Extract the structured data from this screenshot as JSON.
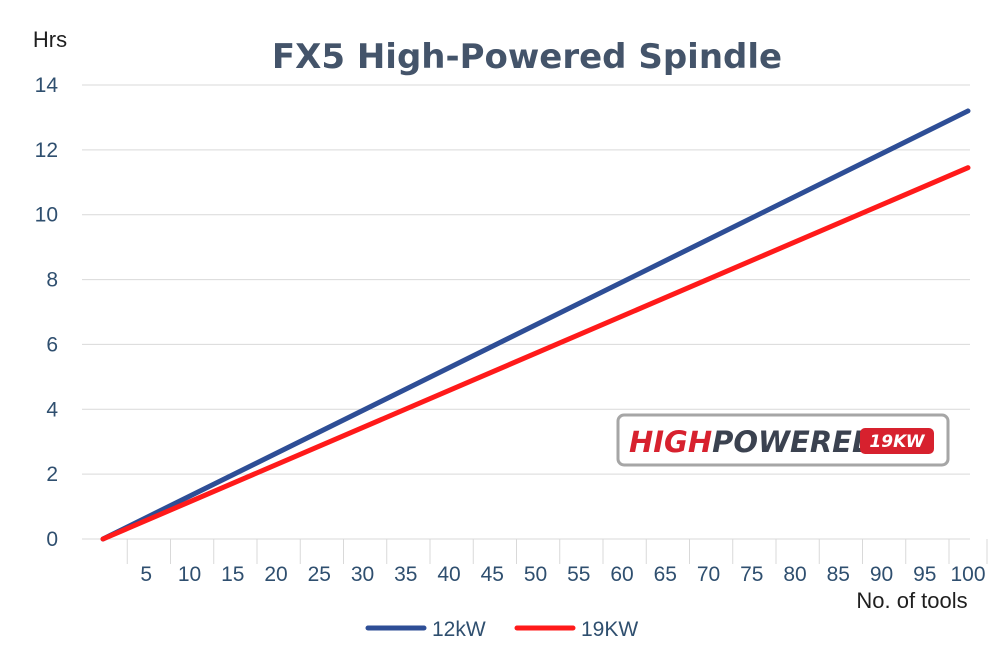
{
  "chart_data": {
    "type": "line",
    "title": "FX5 High-Powered Spindle",
    "ylabel": "Hrs",
    "xlabel": "No. of tools",
    "ylim": [
      0,
      14
    ],
    "yticks": [
      0,
      2,
      4,
      6,
      8,
      10,
      12,
      14
    ],
    "xlim": [
      0,
      100
    ],
    "xticks": [
      5,
      10,
      15,
      20,
      25,
      30,
      35,
      40,
      45,
      50,
      55,
      60,
      65,
      70,
      75,
      80,
      85,
      90,
      95,
      100
    ],
    "grid": "horizontal",
    "legend": "bottom",
    "x": [
      0,
      100
    ],
    "series": [
      {
        "name": "12kW",
        "color": "#2e4e96",
        "x": [
          0,
          100
        ],
        "values": [
          0,
          13.2
        ]
      },
      {
        "name": "19KW",
        "color": "#ff1a1a",
        "x": [
          0,
          100
        ],
        "values": [
          0,
          11.45
        ]
      }
    ]
  },
  "logo": {
    "text_high": "HIGH",
    "text_powered": "POWERED",
    "text_kw": "19KW",
    "color_high": "#d7212e",
    "color_powered": "#3b4250",
    "color_badge": "#d7212e"
  }
}
